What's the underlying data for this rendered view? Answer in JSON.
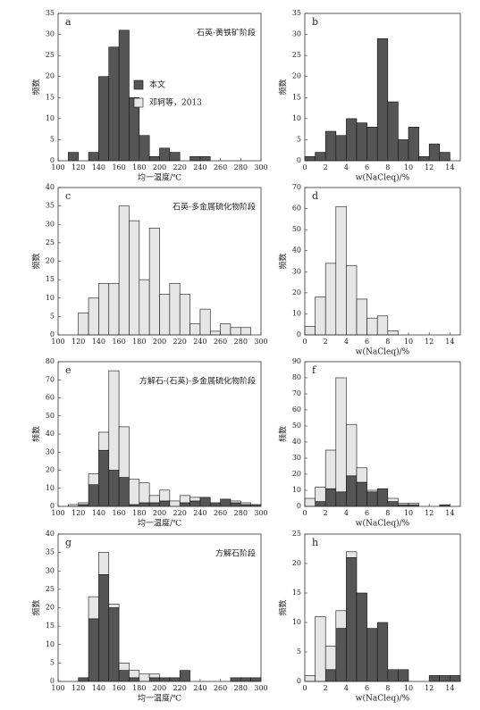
{
  "chart_data": [
    {
      "type": "histogram",
      "label": "a",
      "annotation": "石英-黄铁矿阶段",
      "xlabel": "均一温度/℃",
      "ylabel": "频数",
      "bins": [
        100,
        110,
        120,
        130,
        140,
        150,
        160,
        170,
        180,
        190,
        200,
        210,
        220,
        230,
        240,
        250,
        260,
        270,
        280,
        290,
        300
      ],
      "xlim": [
        100,
        300
      ],
      "xticks": [
        100,
        120,
        140,
        160,
        180,
        200,
        220,
        240,
        260,
        280,
        300
      ],
      "ylim": [
        0,
        35
      ],
      "yticks": [
        0,
        5,
        10,
        15,
        20,
        25,
        30,
        35
      ],
      "series": [
        {
          "name": "本文",
          "color": "#555555",
          "values": [
            0,
            2,
            0,
            2,
            20,
            27,
            31,
            15,
            6,
            1,
            3,
            2,
            0,
            1,
            1,
            0,
            0,
            0,
            0,
            0
          ]
        },
        {
          "name": "邓轲等，2013",
          "color": "#e6e6e6",
          "values": [
            0,
            0,
            0,
            0,
            0,
            0,
            0,
            0,
            0,
            0,
            0,
            0,
            0,
            0,
            0,
            0,
            0,
            0,
            0,
            0
          ]
        }
      ]
    },
    {
      "type": "histogram",
      "label": "b",
      "xlabel": "w(NaCleq)/%",
      "ylabel": "频数",
      "bins": [
        0,
        1,
        2,
        3,
        4,
        5,
        6,
        7,
        8,
        9,
        10,
        11,
        12,
        13,
        14,
        15
      ],
      "xlim": [
        0,
        15
      ],
      "xticks": [
        0,
        2,
        4,
        6,
        8,
        10,
        12,
        14
      ],
      "ylim": [
        0,
        35
      ],
      "yticks": [
        0,
        5,
        10,
        15,
        20,
        25,
        30,
        35
      ],
      "series": [
        {
          "color": "#555555",
          "values": [
            1,
            2,
            7,
            6,
            10,
            9,
            8,
            29,
            14,
            5,
            8,
            1,
            4,
            2,
            0
          ]
        }
      ]
    },
    {
      "type": "histogram",
      "label": "c",
      "annotation": "石英-多金属硫化物阶段",
      "ylabel": "频数",
      "bins": [
        100,
        110,
        120,
        130,
        140,
        150,
        160,
        170,
        180,
        190,
        200,
        210,
        220,
        230,
        240,
        250,
        260,
        270,
        280,
        290,
        300
      ],
      "xlim": [
        100,
        300
      ],
      "xticks": [
        100,
        120,
        140,
        160,
        180,
        200,
        220,
        240,
        260,
        280,
        300
      ],
      "ylim": [
        0,
        40
      ],
      "yticks": [
        0,
        5,
        10,
        15,
        20,
        25,
        30,
        35,
        40
      ],
      "series": [
        {
          "color": "#e6e6e6",
          "values": [
            0,
            0,
            6,
            10,
            14,
            14,
            35,
            31,
            15,
            29,
            11,
            14,
            11,
            3,
            7,
            1,
            3,
            2,
            2,
            0
          ]
        }
      ]
    },
    {
      "type": "histogram",
      "label": "d",
      "xlabel": "w(NaCleq)/%",
      "ylabel": "频数",
      "bins": [
        0,
        1,
        2,
        3,
        4,
        5,
        6,
        7,
        8,
        9,
        10,
        11,
        12,
        13,
        14,
        15
      ],
      "xlim": [
        0,
        15
      ],
      "xticks": [
        0,
        2,
        4,
        6,
        8,
        10,
        12,
        14
      ],
      "ylim": [
        0,
        70
      ],
      "yticks": [
        0,
        10,
        20,
        30,
        40,
        50,
        60,
        70
      ],
      "series": [
        {
          "color": "#e6e6e6",
          "values": [
            4,
            18,
            34,
            61,
            33,
            17,
            8,
            9,
            2,
            0,
            0,
            0,
            0,
            0,
            0
          ]
        }
      ]
    },
    {
      "type": "histogram",
      "label": "e",
      "annotation": "方解石-(石英)-多金属硫化物阶段",
      "xlabel": "均一温度/℃",
      "ylabel": "频数",
      "bins": [
        100,
        110,
        120,
        130,
        140,
        150,
        160,
        170,
        180,
        190,
        200,
        210,
        220,
        230,
        240,
        250,
        260,
        270,
        280,
        290,
        300
      ],
      "xlim": [
        100,
        300
      ],
      "xticks": [
        100,
        120,
        140,
        160,
        180,
        200,
        220,
        240,
        260,
        280,
        300
      ],
      "ylim": [
        0,
        80
      ],
      "yticks": [
        0,
        10,
        20,
        30,
        40,
        50,
        60,
        70,
        80
      ],
      "series": [
        {
          "color": "#555555",
          "values": [
            0,
            0,
            1,
            12,
            31,
            20,
            16,
            1,
            2,
            2,
            3,
            0,
            2,
            3,
            5,
            2,
            4,
            2,
            1,
            1
          ]
        },
        {
          "color": "#e6e6e6",
          "values": [
            0,
            1,
            1,
            6,
            10,
            55,
            28,
            14,
            11,
            4,
            6,
            3,
            4,
            2,
            0,
            0,
            0,
            1,
            1,
            0
          ]
        }
      ]
    },
    {
      "type": "histogram",
      "label": "f",
      "xlabel": "w(NaCleq)/%",
      "ylabel": "频数",
      "bins": [
        0,
        1,
        2,
        3,
        4,
        5,
        6,
        7,
        8,
        9,
        10,
        11,
        12,
        13,
        14,
        15
      ],
      "xlim": [
        0,
        15
      ],
      "xticks": [
        0,
        2,
        4,
        6,
        8,
        10,
        12,
        14
      ],
      "ylim": [
        0,
        90
      ],
      "yticks": [
        0,
        10,
        20,
        30,
        40,
        50,
        60,
        70,
        80,
        90
      ],
      "series": [
        {
          "color": "#555555",
          "values": [
            0,
            3,
            11,
            9,
            19,
            15,
            9,
            11,
            3,
            1,
            1,
            0,
            0,
            1,
            0
          ]
        },
        {
          "color": "#e6e6e6",
          "values": [
            5,
            9,
            24,
            71,
            32,
            9,
            1,
            0,
            2,
            1,
            1,
            0,
            0,
            0,
            0
          ]
        }
      ]
    },
    {
      "type": "histogram",
      "label": "g",
      "annotation": "方解石阶段",
      "xlabel": "均一温度/℃",
      "ylabel": "频数",
      "bins": [
        100,
        110,
        120,
        130,
        140,
        150,
        160,
        170,
        180,
        190,
        200,
        210,
        220,
        230,
        240,
        250,
        260,
        270,
        280,
        290,
        300
      ],
      "xlim": [
        100,
        300
      ],
      "xticks": [
        100,
        120,
        140,
        160,
        180,
        200,
        220,
        240,
        260,
        280,
        300
      ],
      "ylim": [
        0,
        40
      ],
      "yticks": [
        0,
        5,
        10,
        15,
        20,
        25,
        30,
        35,
        40
      ],
      "series": [
        {
          "color": "#555555",
          "values": [
            0,
            0,
            1,
            17,
            29,
            20,
            3,
            1,
            0,
            1,
            1,
            1,
            3,
            0,
            0,
            0,
            0,
            1,
            1,
            1
          ]
        },
        {
          "color": "#e6e6e6",
          "values": [
            0,
            0,
            0,
            6,
            6,
            1,
            2,
            2,
            2,
            1,
            0,
            0,
            0,
            0,
            0,
            0,
            0,
            0,
            0,
            0
          ]
        }
      ]
    },
    {
      "type": "histogram",
      "label": "h",
      "xlabel": "w(NaCleq)/%",
      "ylabel": "频数",
      "bins": [
        0,
        1,
        2,
        3,
        4,
        5,
        6,
        7,
        8,
        9,
        10,
        11,
        12,
        13,
        14,
        15
      ],
      "xlim": [
        0,
        15
      ],
      "xticks": [
        0,
        2,
        4,
        6,
        8,
        10,
        12,
        14
      ],
      "ylim": [
        0,
        25
      ],
      "yticks": [
        0,
        5,
        10,
        15,
        20,
        25
      ],
      "series": [
        {
          "color": "#555555",
          "values": [
            0,
            0,
            2,
            9,
            21,
            15,
            9,
            10,
            2,
            2,
            0,
            0,
            1,
            1,
            1
          ]
        },
        {
          "color": "#e6e6e6",
          "values": [
            1,
            11,
            4,
            3,
            1,
            0,
            0,
            0,
            0,
            0,
            0,
            0,
            0,
            0,
            0
          ]
        }
      ]
    }
  ]
}
